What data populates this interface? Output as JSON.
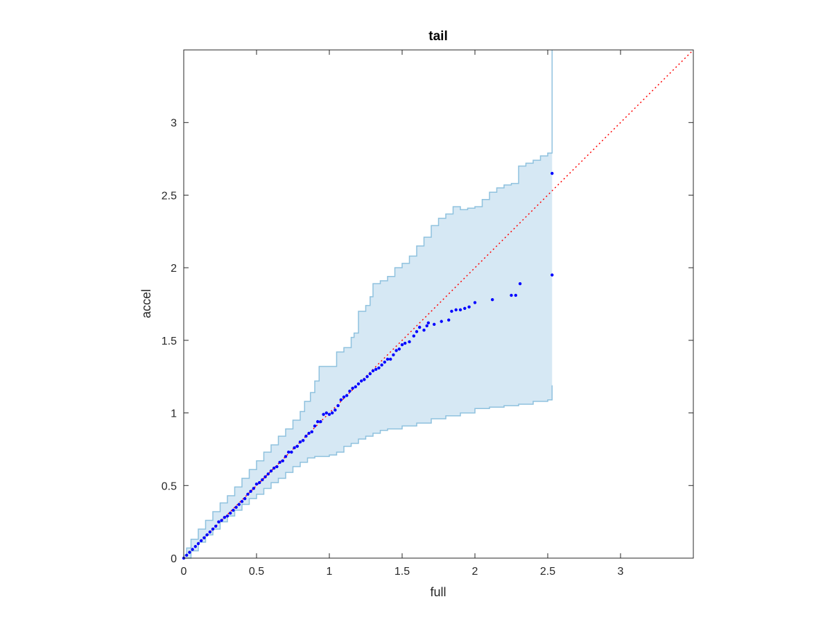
{
  "chart_data": {
    "type": "scatter",
    "title": "tail",
    "xlabel": "full",
    "ylabel": "accel",
    "xlim": [
      0,
      3.5
    ],
    "ylim": [
      0,
      3.5
    ],
    "xticks": [
      "0",
      "0.5",
      "1",
      "1.5",
      "2",
      "2.5",
      "3"
    ],
    "yticks": [
      "0",
      "0.5",
      "1",
      "1.5",
      "2",
      "2.5",
      "3"
    ],
    "grid": false,
    "colors": {
      "points": "#0000ff",
      "reference_line": "#ff0000",
      "band_fill": "#d6e8f4",
      "band_edge": "#8ec1de",
      "axes": "#262626"
    },
    "reference_line": {
      "style": "dotted",
      "x": [
        0,
        3.5
      ],
      "y": [
        0,
        3.5
      ]
    },
    "band": {
      "upper": {
        "x": [
          0,
          0.02,
          0.05,
          0.1,
          0.15,
          0.2,
          0.25,
          0.3,
          0.35,
          0.4,
          0.45,
          0.5,
          0.55,
          0.6,
          0.65,
          0.7,
          0.75,
          0.8,
          0.83,
          0.87,
          0.9,
          0.93,
          1.0,
          1.05,
          1.1,
          1.15,
          1.17,
          1.2,
          1.25,
          1.28,
          1.3,
          1.35,
          1.4,
          1.45,
          1.5,
          1.55,
          1.6,
          1.65,
          1.7,
          1.75,
          1.8,
          1.85,
          1.9,
          1.95,
          2.0,
          2.05,
          2.1,
          2.15,
          2.2,
          2.25,
          2.3,
          2.35,
          2.4,
          2.45,
          2.5,
          2.53,
          2.53
        ],
        "y": [
          0.02,
          0.07,
          0.13,
          0.2,
          0.26,
          0.32,
          0.38,
          0.43,
          0.49,
          0.55,
          0.61,
          0.67,
          0.73,
          0.78,
          0.84,
          0.89,
          0.95,
          1.01,
          1.08,
          1.14,
          1.22,
          1.32,
          1.32,
          1.42,
          1.45,
          1.52,
          1.55,
          1.7,
          1.74,
          1.8,
          1.89,
          1.91,
          1.94,
          2.0,
          2.03,
          2.08,
          2.15,
          2.21,
          2.29,
          2.34,
          2.37,
          2.42,
          2.4,
          2.41,
          2.42,
          2.47,
          2.52,
          2.55,
          2.57,
          2.58,
          2.7,
          2.72,
          2.74,
          2.77,
          2.79,
          2.82,
          3.5
        ]
      },
      "lower": {
        "x": [
          0,
          0.05,
          0.1,
          0.15,
          0.2,
          0.25,
          0.3,
          0.35,
          0.4,
          0.45,
          0.5,
          0.55,
          0.6,
          0.65,
          0.7,
          0.75,
          0.8,
          0.85,
          0.9,
          0.95,
          1.0,
          1.05,
          1.1,
          1.15,
          1.2,
          1.25,
          1.3,
          1.35,
          1.4,
          1.5,
          1.6,
          1.7,
          1.8,
          1.9,
          2.0,
          2.1,
          2.2,
          2.3,
          2.4,
          2.5,
          2.53,
          2.53
        ],
        "y": [
          0,
          0.05,
          0.11,
          0.16,
          0.2,
          0.25,
          0.29,
          0.33,
          0.37,
          0.41,
          0.44,
          0.48,
          0.52,
          0.55,
          0.59,
          0.63,
          0.66,
          0.69,
          0.7,
          0.7,
          0.71,
          0.73,
          0.77,
          0.79,
          0.82,
          0.84,
          0.86,
          0.88,
          0.89,
          0.91,
          0.93,
          0.96,
          0.98,
          1.0,
          1.03,
          1.04,
          1.05,
          1.06,
          1.08,
          1.09,
          1.1,
          1.19
        ]
      }
    },
    "series": [
      {
        "x": [
          0.0,
          0.02,
          0.04,
          0.06,
          0.08,
          0.1,
          0.12,
          0.14,
          0.16,
          0.18,
          0.2,
          0.22,
          0.24,
          0.26,
          0.28,
          0.3,
          0.32,
          0.34,
          0.36,
          0.38,
          0.4,
          0.42,
          0.44,
          0.46,
          0.48,
          0.5,
          0.52,
          0.54,
          0.56,
          0.58,
          0.6,
          0.62,
          0.64,
          0.66,
          0.68,
          0.7,
          0.72,
          0.74,
          0.76,
          0.78,
          0.8,
          0.82,
          0.84,
          0.86,
          0.88,
          0.9,
          0.92,
          0.94,
          0.96,
          0.98,
          1.0,
          1.02,
          1.04,
          1.06,
          1.08,
          1.1,
          1.12,
          1.14,
          1.16,
          1.18,
          1.2,
          1.22,
          1.24,
          1.26,
          1.28,
          1.3,
          1.32,
          1.34,
          1.36,
          1.38,
          1.4,
          1.42,
          1.44,
          1.46,
          1.48,
          1.5,
          1.52,
          1.55,
          1.58,
          1.6,
          1.62,
          1.65,
          1.67,
          1.68,
          1.72,
          1.77,
          1.82,
          1.84,
          1.87,
          1.9,
          1.93,
          1.96,
          2.0,
          2.12,
          2.25,
          2.28,
          2.31,
          2.53,
          2.53
        ],
        "y": [
          0.0,
          0.02,
          0.04,
          0.06,
          0.08,
          0.1,
          0.12,
          0.14,
          0.16,
          0.18,
          0.2,
          0.22,
          0.25,
          0.26,
          0.28,
          0.29,
          0.31,
          0.33,
          0.35,
          0.37,
          0.39,
          0.41,
          0.44,
          0.46,
          0.48,
          0.51,
          0.52,
          0.54,
          0.56,
          0.58,
          0.6,
          0.62,
          0.63,
          0.66,
          0.67,
          0.7,
          0.73,
          0.73,
          0.76,
          0.77,
          0.8,
          0.81,
          0.84,
          0.86,
          0.87,
          0.91,
          0.94,
          0.94,
          0.99,
          1.0,
          0.99,
          1.0,
          1.02,
          1.05,
          1.09,
          1.11,
          1.12,
          1.15,
          1.17,
          1.18,
          1.2,
          1.22,
          1.23,
          1.25,
          1.27,
          1.29,
          1.3,
          1.31,
          1.33,
          1.35,
          1.37,
          1.37,
          1.4,
          1.43,
          1.44,
          1.47,
          1.48,
          1.49,
          1.53,
          1.56,
          1.59,
          1.57,
          1.6,
          1.62,
          1.61,
          1.63,
          1.64,
          1.7,
          1.71,
          1.71,
          1.72,
          1.73,
          1.76,
          1.78,
          1.81,
          1.81,
          1.89,
          1.95,
          2.65
        ]
      }
    ]
  }
}
